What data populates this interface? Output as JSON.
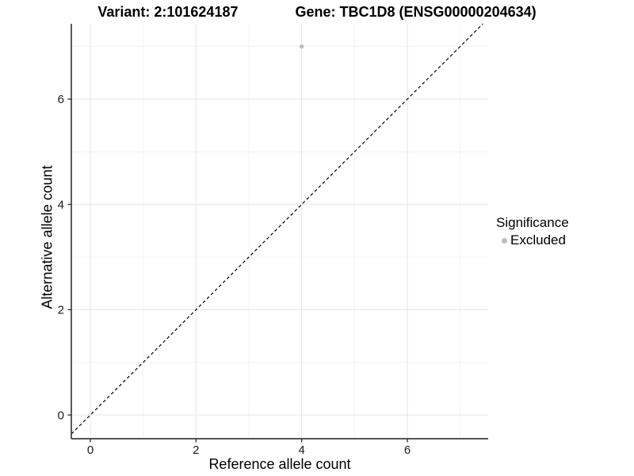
{
  "title": {
    "variant": "Variant: 2:101624187",
    "gene": "Gene: TBC1D8 (ENSG00000204634)"
  },
  "chart_data": {
    "type": "scatter",
    "title": "Variant: 2:101624187   Gene: TBC1D8 (ENSG00000204634)",
    "xlabel": "Reference allele count",
    "ylabel": "Alternative allele count",
    "xlim": [
      -0.36,
      7.53
    ],
    "ylim": [
      -0.45,
      7.43
    ],
    "x_major_ticks": [
      0,
      2,
      4,
      6
    ],
    "y_major_ticks": [
      0,
      2,
      4,
      6
    ],
    "x_minor_ticks": [
      1,
      3,
      5,
      7
    ],
    "y_minor_ticks": [
      1,
      3,
      5,
      7
    ],
    "grid": true,
    "series": [
      {
        "name": "Excluded",
        "color": "#bdbdbd",
        "point_radius": 2.7,
        "points": [
          {
            "x": 4,
            "y": 7
          }
        ]
      }
    ],
    "reference_line": {
      "type": "identity",
      "style": "dashed",
      "color": "#000000",
      "dash": "4 3.1"
    },
    "legend": {
      "title": "Significance",
      "position": "right",
      "items": [
        {
          "label": "Excluded",
          "color": "#bdbdbd"
        }
      ]
    },
    "colors": {
      "grid_major": "#e6e6e6",
      "grid_minor": "#f0f0f0",
      "axis_line": "#3d3d3d",
      "tick_mark": "#333333",
      "tick_text": "#1a1a1a",
      "background": "#ffffff"
    }
  }
}
